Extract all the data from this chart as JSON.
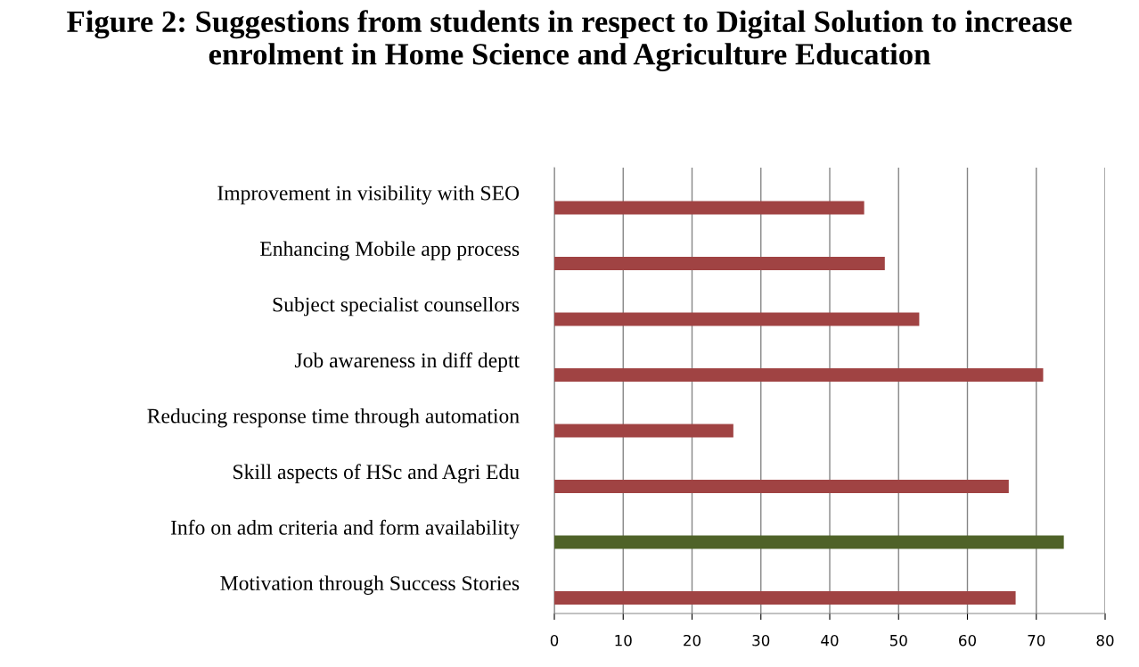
{
  "chart_data": {
    "type": "bar",
    "orientation": "horizontal",
    "title": "Figure 2: Suggestions from students in respect to Digital Solution to increase enrolment in Home Science and Agriculture Education",
    "categories": [
      "Improvement in visibility with SEO",
      "Enhancing Mobile app process",
      "Subject specialist counsellors",
      "Job awareness in diff deptt",
      "Reducing response time through automation",
      "Skill aspects of HSc and Agri Edu",
      "Info on adm criteria and form availability",
      "Motivation through Success Stories"
    ],
    "values": [
      45,
      48,
      53,
      71,
      26,
      66,
      74,
      67
    ],
    "colors": [
      "#a04343",
      "#a04343",
      "#a04343",
      "#a04343",
      "#a04343",
      "#a04343",
      "#4f6228",
      "#a04343"
    ],
    "xlim": [
      0,
      80
    ],
    "xticks": [
      0,
      10,
      20,
      30,
      40,
      50,
      60,
      70,
      80
    ],
    "grid": "x",
    "legend": false
  }
}
